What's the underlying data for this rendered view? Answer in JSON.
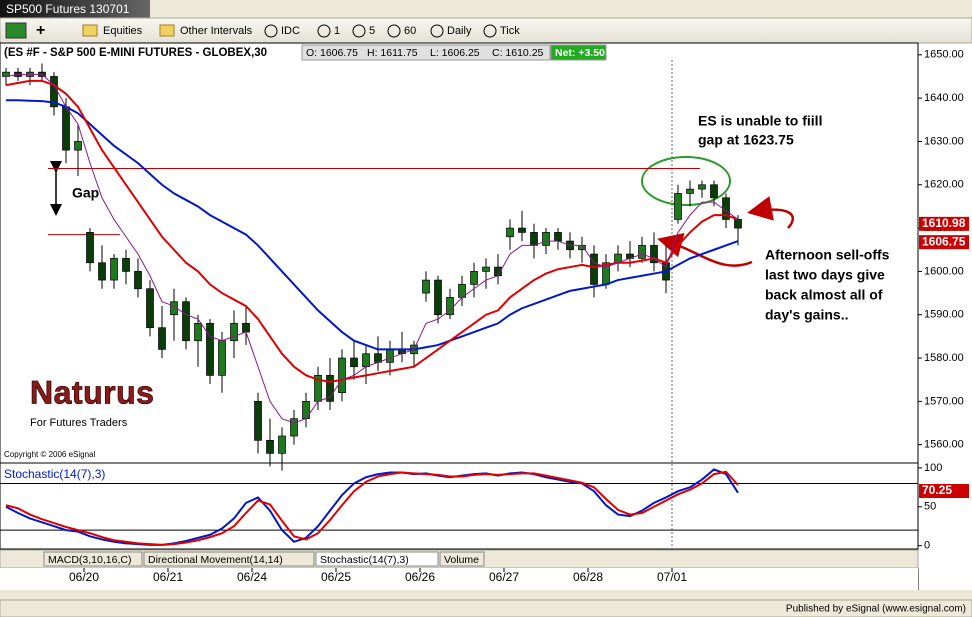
{
  "window_title": "SP500 Futures 130701",
  "toolbar": [
    "Equities",
    "Other Intervals",
    "IDC",
    "1",
    "5",
    "60",
    "Daily",
    "Tick"
  ],
  "tabs": [
    "MACD(3,10,16,C)",
    "Directional Movement(14,14)",
    "Stochastic(14(7),3)",
    "Volume"
  ],
  "status": "Published by eSignal (www.esignal.com)",
  "logo": {
    "name": "Naturus",
    "tagline": "For Futures Traders"
  },
  "copyright": "Copyright © 2006 eSignal",
  "chart_data": [
    {
      "type": "candlestick",
      "title": "(ES #F - S&P 500 E-MINI FUTURES - GLOBEX,30",
      "quote": [
        "O: 1606.75",
        "H: 1611.75",
        "L: 1606.25",
        "C: 1610.25"
      ],
      "net": "Net: +3.50",
      "categories": [
        null,
        null,
        null,
        null,
        null,
        null,
        null,
        "06/20",
        null,
        null,
        null,
        null,
        null,
        null,
        "06/21",
        null,
        null,
        null,
        null,
        null,
        null,
        "06/24",
        null,
        null,
        null,
        null,
        null,
        null,
        "06/25",
        null,
        null,
        null,
        null,
        null,
        null,
        "06/26",
        null,
        null,
        null,
        null,
        null,
        null,
        "06/27",
        null,
        null,
        null,
        null,
        null,
        null,
        "06/28",
        null,
        null,
        null,
        null,
        null,
        null,
        "07/01",
        null,
        null,
        null,
        null,
        null
      ],
      "open": [
        1645,
        1646,
        1645,
        1646,
        1645,
        1638,
        1628,
        1609,
        1602,
        1598,
        1603,
        1600,
        1596,
        1587,
        1590,
        1593,
        1584,
        1588,
        1576,
        1584,
        1588,
        1570,
        1561,
        1558,
        1562,
        1566,
        1570,
        1576,
        1572,
        1580,
        1578,
        1581,
        1579,
        1582,
        1581,
        1595,
        1598,
        1590,
        1594,
        1597,
        1600,
        1601,
        1608,
        1610,
        1609,
        1606,
        1609,
        1607,
        1605,
        1604,
        1597,
        1602,
        1604,
        1603,
        1606,
        1602,
        1612,
        1618,
        1619,
        1620,
        1617,
        1612
      ],
      "high": [
        1647,
        1647,
        1647,
        1648,
        1646,
        1640,
        1634,
        1610,
        1606,
        1604,
        1605,
        1603,
        1598,
        1592,
        1596,
        1594,
        1590,
        1589,
        1586,
        1591,
        1592,
        1572,
        1566,
        1564,
        1568,
        1572,
        1578,
        1580,
        1582,
        1584,
        1583,
        1585,
        1584,
        1586,
        1584,
        1600,
        1599,
        1596,
        1599,
        1602,
        1603,
        1604,
        1612,
        1614,
        1611,
        1610,
        1610,
        1609,
        1608,
        1606,
        1604,
        1606,
        1607,
        1608,
        1609,
        1606,
        1620,
        1621,
        1621,
        1621,
        1618,
        1613
      ],
      "low": [
        1643,
        1644,
        1643,
        1644,
        1636,
        1625,
        1622,
        1600,
        1596,
        1596,
        1597,
        1594,
        1585,
        1580,
        1584,
        1582,
        1578,
        1574,
        1572,
        1580,
        1583,
        1558,
        1555,
        1554,
        1560,
        1564,
        1568,
        1568,
        1570,
        1575,
        1574,
        1577,
        1576,
        1579,
        1578,
        1593,
        1588,
        1589,
        1592,
        1594,
        1596,
        1597,
        1605,
        1607,
        1603,
        1604,
        1605,
        1603,
        1602,
        1594,
        1596,
        1600,
        1601,
        1602,
        1600,
        1595,
        1611,
        1615,
        1617,
        1615,
        1610,
        1606
      ],
      "close": [
        1646,
        1645,
        1646,
        1645,
        1638,
        1628,
        1630,
        1602,
        1598,
        1603,
        1600,
        1596,
        1587,
        1582,
        1593,
        1584,
        1588,
        1576,
        1584,
        1588,
        1586,
        1561,
        1558,
        1562,
        1566,
        1570,
        1576,
        1570,
        1580,
        1578,
        1581,
        1579,
        1582,
        1581,
        1583,
        1598,
        1590,
        1594,
        1597,
        1600,
        1601,
        1599,
        1610,
        1609,
        1606,
        1609,
        1607,
        1605,
        1606,
        1597,
        1602,
        1604,
        1603,
        1606,
        1602,
        1598,
        1618,
        1619,
        1620,
        1617,
        1612,
        1610
      ],
      "up_color": "#1f7a1f",
      "down_color": "#0b3d0b",
      "series": [
        {
          "color": "#0018c8",
          "values": [
            1639.5,
            1639.5,
            1639.4,
            1639.3,
            1639,
            1638,
            1636.5,
            1634,
            1631.5,
            1629,
            1627,
            1625,
            1622.5,
            1620,
            1618,
            1616.5,
            1615,
            1613,
            1611.5,
            1610,
            1608.5,
            1606,
            1603,
            1600,
            1597,
            1594,
            1591,
            1588.5,
            1586,
            1584,
            1583,
            1582,
            1582,
            1582,
            1582,
            1582.5,
            1583,
            1584,
            1585,
            1586,
            1587,
            1588,
            1590,
            1591.5,
            1592.5,
            1593.5,
            1594.5,
            1595.5,
            1596,
            1596.5,
            1597,
            1598,
            1598.5,
            1599,
            1599.5,
            1600,
            1601.5,
            1603,
            1604,
            1605,
            1606,
            1607
          ]
        },
        {
          "color": "#e00000",
          "values": [
            1643,
            1643.5,
            1644,
            1644,
            1643,
            1641,
            1638,
            1633,
            1628,
            1624,
            1620,
            1616,
            1612,
            1608,
            1605,
            1602,
            1600,
            1597,
            1595,
            1593.5,
            1592,
            1589,
            1585,
            1581,
            1578,
            1576,
            1575,
            1574.5,
            1575,
            1575.5,
            1576,
            1576.5,
            1577,
            1577.5,
            1578,
            1580,
            1582,
            1584,
            1586,
            1588,
            1590,
            1591,
            1594,
            1596,
            1598,
            1599.5,
            1600.5,
            1601,
            1601.5,
            1601,
            1601.5,
            1602,
            1602,
            1602.5,
            1603,
            1602,
            1606,
            1609,
            1611.5,
            1613,
            1613,
            1612
          ]
        },
        {
          "color": "#8a1a8a",
          "values": [
            1645,
            1645.5,
            1645.5,
            1645.5,
            1643,
            1638,
            1634,
            1625,
            1617,
            1612,
            1608,
            1604,
            1599,
            1593,
            1592,
            1590,
            1589,
            1585,
            1584,
            1585,
            1586,
            1578,
            1570,
            1566,
            1565,
            1566,
            1570,
            1571,
            1575,
            1576,
            1578,
            1579,
            1580,
            1581,
            1582,
            1588,
            1589,
            1591,
            1594,
            1596,
            1598,
            1599,
            1604,
            1606,
            1606,
            1607,
            1607,
            1606,
            1606,
            1602,
            1601,
            1602,
            1603,
            1604,
            1603,
            1601,
            1609,
            1613,
            1616,
            1616,
            1614,
            1612
          ]
        }
      ],
      "ylim": [
        1556,
        1652.5
      ],
      "yticks": [
        {
          "value": 1560,
          "label": "1560.00"
        },
        {
          "value": 1570,
          "label": "1570.00"
        },
        {
          "value": 1580,
          "label": "1580.00"
        },
        {
          "value": 1590,
          "label": "1590.00"
        },
        {
          "value": 1600,
          "label": "1600.00"
        },
        {
          "value": 1610,
          "label": "1610.00"
        },
        {
          "value": 1620,
          "label": "1620.00"
        },
        {
          "value": 1630,
          "label": "1630.00"
        },
        {
          "value": 1640,
          "label": "1640.00"
        },
        {
          "value": 1650,
          "label": "1650.00"
        }
      ],
      "hlines": [
        1623.75,
        1608.5
      ],
      "markers": [
        {
          "value": 1610.98,
          "color": "#cc0000"
        },
        {
          "value": 1606.75,
          "color": "#cc0000"
        }
      ],
      "annotations": [
        "ES is unable to fiill",
        "gap at 1623.75",
        "Afternoon sell-offs",
        "last two days give",
        "back almost all of",
        "day's gains..",
        "Gap"
      ]
    },
    {
      "type": "line",
      "title": "Stochastic(14(7),3)",
      "series": [
        {
          "color": "#0018c8",
          "values": [
            50,
            42,
            35,
            30,
            25,
            20,
            18,
            12,
            8,
            5,
            3,
            2,
            1,
            1,
            3,
            6,
            10,
            14,
            22,
            35,
            55,
            62,
            45,
            20,
            5,
            10,
            25,
            45,
            65,
            80,
            88,
            92,
            94,
            94,
            92,
            93,
            90,
            88,
            90,
            92,
            93,
            90,
            93,
            94,
            92,
            88,
            85,
            82,
            80,
            70,
            52,
            40,
            38,
            45,
            55,
            62,
            70,
            75,
            85,
            98,
            92,
            68
          ]
        },
        {
          "color": "#e00000",
          "values": [
            52,
            48,
            40,
            34,
            29,
            24,
            20,
            16,
            11,
            7,
            5,
            3,
            2,
            1,
            2,
            4,
            7,
            11,
            16,
            25,
            42,
            58,
            53,
            32,
            12,
            8,
            16,
            33,
            52,
            70,
            82,
            89,
            92,
            94,
            93,
            92,
            91,
            89,
            89,
            91,
            92,
            91,
            92,
            93,
            93,
            90,
            87,
            84,
            81,
            75,
            60,
            46,
            40,
            42,
            50,
            58,
            66,
            72,
            80,
            92,
            95,
            78
          ]
        }
      ],
      "ylim": [
        -3,
        105
      ],
      "yticks": [
        0,
        50,
        100
      ],
      "hlines": [
        80,
        20
      ],
      "markers": [
        {
          "value": 70.25,
          "color": "#cc0000"
        }
      ]
    }
  ]
}
